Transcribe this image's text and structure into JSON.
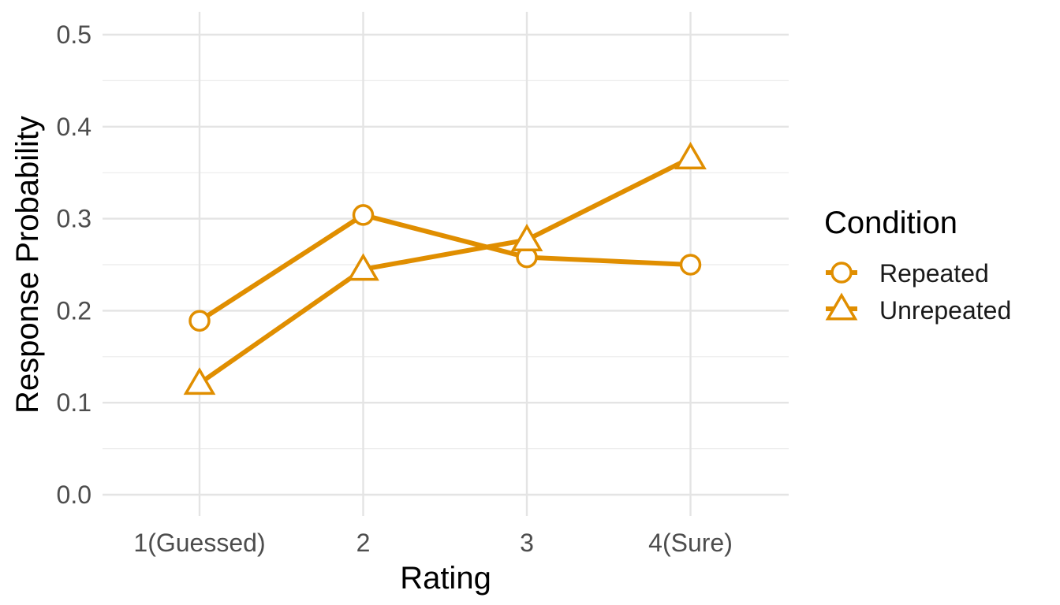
{
  "chart_data": {
    "type": "line",
    "xlabel": "Rating",
    "ylabel": "Response Probability",
    "categories": [
      "1(Guessed)",
      "2",
      "3",
      "4(Sure)"
    ],
    "ylim": [
      0,
      0.5
    ],
    "yticks": [
      "0.0",
      "0.1",
      "0.2",
      "0.3",
      "0.4",
      "0.5"
    ],
    "grid": true,
    "legend": {
      "title": "Condition",
      "position": "right"
    },
    "series": [
      {
        "name": "Repeated",
        "marker": "circle",
        "color": "#E08E00",
        "values": [
          0.189,
          0.304,
          0.258,
          0.25
        ]
      },
      {
        "name": "Unrepeated",
        "marker": "triangle",
        "color": "#E08E00",
        "values": [
          0.121,
          0.245,
          0.277,
          0.366
        ]
      }
    ]
  }
}
